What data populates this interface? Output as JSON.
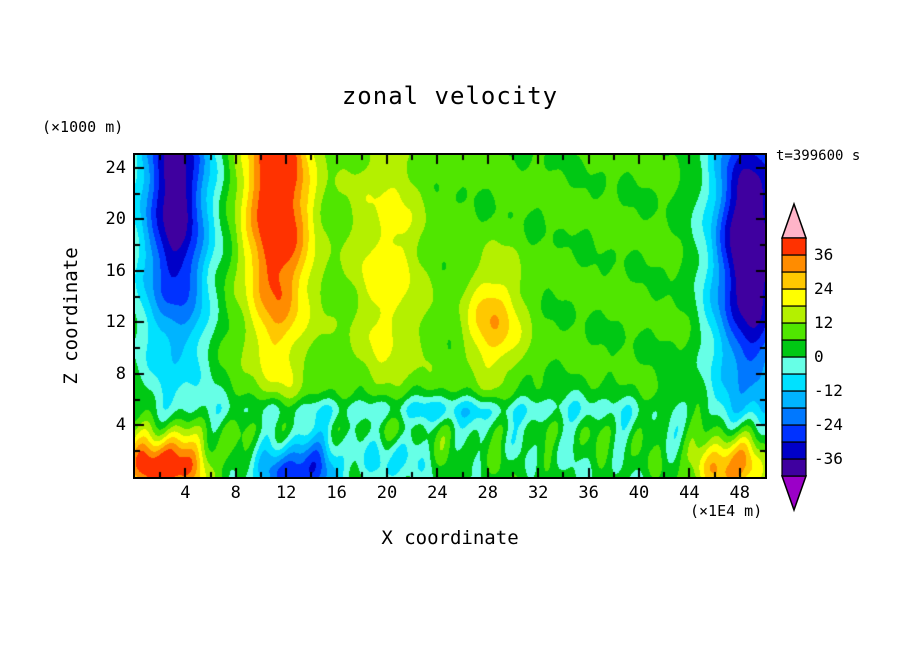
{
  "title": "zonal velocity",
  "annotation": "t=399600 s",
  "axes": {
    "x": {
      "label": "X coordinate",
      "unit": "(×1E4 m)",
      "range": [
        0,
        50
      ],
      "ticks": [
        4,
        8,
        12,
        16,
        20,
        24,
        28,
        32,
        36,
        40,
        44,
        48
      ],
      "minor_step": 2
    },
    "z": {
      "label": "Z coordinate",
      "unit": "(×1000 m)",
      "range": [
        0,
        25
      ],
      "ticks": [
        4,
        8,
        12,
        16,
        20,
        24
      ],
      "minor_step": 2
    }
  },
  "colorbar": {
    "ticks": [
      36,
      24,
      12,
      0,
      -12,
      -24,
      -36
    ],
    "levels": [
      -42,
      -36,
      -30,
      -24,
      -18,
      -12,
      -6,
      0,
      6,
      12,
      18,
      24,
      30,
      36,
      42
    ],
    "cells": [
      "#3f009f",
      "#0000c8",
      "#0032ff",
      "#0078ff",
      "#00b4ff",
      "#00e1ff",
      "#66ffe6",
      "#00c814",
      "#50e600",
      "#b4f000",
      "#ffff00",
      "#ffc800",
      "#ff8c00",
      "#ff3200"
    ],
    "under": "#9b00c8",
    "over": "#ffb4c8"
  },
  "chart_data": {
    "type": "heatmap",
    "title": "zonal velocity",
    "xlabel": "X coordinate (×1E4 m)",
    "ylabel": "Z coordinate (×1000 m)",
    "xlim": [
      0,
      50
    ],
    "ylim": [
      0,
      25
    ],
    "time": "t=399600 s",
    "contour_interval": 6,
    "value_range": [
      -42,
      42
    ],
    "legend_position": "right-colorbar",
    "features": [
      "deep negative column (u <= -36, indigo/navy) near x=1-6 through the upper levels",
      "strong positive column (u >= 30, orange-red) near x=8-15 aloft",
      "yellow positive streak near x=18-21",
      "broad weak positive (green, u ~ 6-12) region spanning x=16-44",
      "local orange maximum (u ~ 24-30) near x=28-30, z=11-13",
      "deep negative column (u <= -36) near x=45-50 aloft",
      "positive maximum (red, u >= 36) in bottom-left corner x=0-6, z<4",
      "negative pocket (dark blue, u ~ -30) along bottom x=9-17, z<3",
      "positive maximum (orange-red) in bottom-right corner x=44-49, z<3",
      "shallow cyan negative band (u ~ -6 to -12) along z=5",
      "small-scale plume-like streaks of alternating sign below z=6"
    ],
    "field_model": {
      "baseline": {
        "low": 2,
        "high": 7,
        "z_mid": 6,
        "z_scale": 1.5
      },
      "blobs": [
        {
          "a": -48,
          "x": 3.2,
          "sx": 2.8,
          "z": 22,
          "sz": 13
        },
        {
          "a": 40,
          "x": 11.3,
          "sx": 2.6,
          "z": 22,
          "sz": 13
        },
        {
          "a": 14,
          "x": 20,
          "sx": 3.0,
          "z": 16,
          "sz": 12
        },
        {
          "a": 22,
          "x": 28.5,
          "sx": 2.2,
          "z": 12,
          "sz": 4.5
        },
        {
          "a": -54,
          "x": 48.8,
          "sx": 3.0,
          "z": 18,
          "sz": 12
        },
        {
          "a": 46,
          "x": 2.5,
          "sx": 3.4,
          "z": 1,
          "sz": 2.8
        },
        {
          "a": -36,
          "x": 13,
          "sx": 3.2,
          "z": 0.5,
          "sz": 2.5
        },
        {
          "a": -14,
          "x": 20.5,
          "sx": 2.0,
          "z": 1.5,
          "sz": 2.0
        },
        {
          "a": 40,
          "x": 47.5,
          "sx": 2.8,
          "z": 1,
          "sz": 2.5
        },
        {
          "a": -13,
          "x": 23,
          "sx": 16,
          "z": 5.2,
          "sz": 1.1
        }
      ],
      "noise": {
        "amp_low": 7,
        "amp_base": 1.5,
        "z_center": 3,
        "z_width": 3
      }
    }
  }
}
